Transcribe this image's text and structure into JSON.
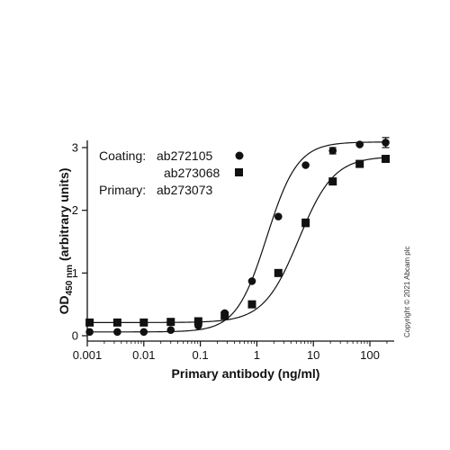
{
  "chart_data": {
    "type": "scatter",
    "xscale": "log",
    "xlim": [
      0.001,
      200
    ],
    "ylim": [
      0,
      3.2
    ],
    "x_ticks": [
      0.001,
      0.01,
      0.1,
      1,
      10,
      100
    ],
    "x_tick_labels": [
      "0.001",
      "0.01",
      "0.1",
      "1",
      "10",
      "100"
    ],
    "y_ticks": [
      0,
      1,
      2,
      3
    ],
    "y_tick_labels": [
      "0",
      "1",
      "2",
      "3"
    ],
    "xlabel": "Primary antibody (ng/ml)",
    "ylabel": {
      "main": "OD",
      "subscript": "450 nm",
      "rest": " (arbitrary units)"
    },
    "legend": {
      "placement": "top-left",
      "coating_label": "Coating:",
      "primary_label": "Primary:",
      "primary_value": "ab273073"
    },
    "series": [
      {
        "name": "ab272105",
        "marker": "circle",
        "x": [
          0.0011,
          0.0034,
          0.01,
          0.03,
          0.092,
          0.27,
          0.82,
          2.4,
          7.3,
          22,
          66,
          190
        ],
        "y": [
          0.06,
          0.06,
          0.06,
          0.09,
          0.16,
          0.36,
          0.87,
          1.9,
          2.72,
          2.95,
          3.05,
          3.08
        ],
        "error": [
          0,
          0,
          0,
          0,
          0,
          0,
          0,
          0,
          0,
          0.05,
          0.02,
          0.08
        ],
        "fit": {
          "bottom": 0.06,
          "top": 3.09,
          "ec50": 1.5,
          "hill": 1.6
        }
      },
      {
        "name": "ab273068",
        "marker": "square",
        "x": [
          0.0011,
          0.0034,
          0.01,
          0.03,
          0.092,
          0.27,
          0.82,
          2.4,
          7.3,
          22,
          66,
          190
        ],
        "y": [
          0.21,
          0.21,
          0.21,
          0.22,
          0.23,
          0.32,
          0.5,
          1.0,
          1.8,
          2.46,
          2.74,
          2.82
        ],
        "error": [
          0,
          0,
          0,
          0,
          0,
          0,
          0,
          0,
          0.06,
          0,
          0,
          0
        ],
        "fit": {
          "bottom": 0.21,
          "top": 2.86,
          "ec50": 5.5,
          "hill": 1.4
        }
      }
    ]
  },
  "copyright": "Copyright © 2021 Abcam plc",
  "colors": {
    "ink": "#111111"
  }
}
